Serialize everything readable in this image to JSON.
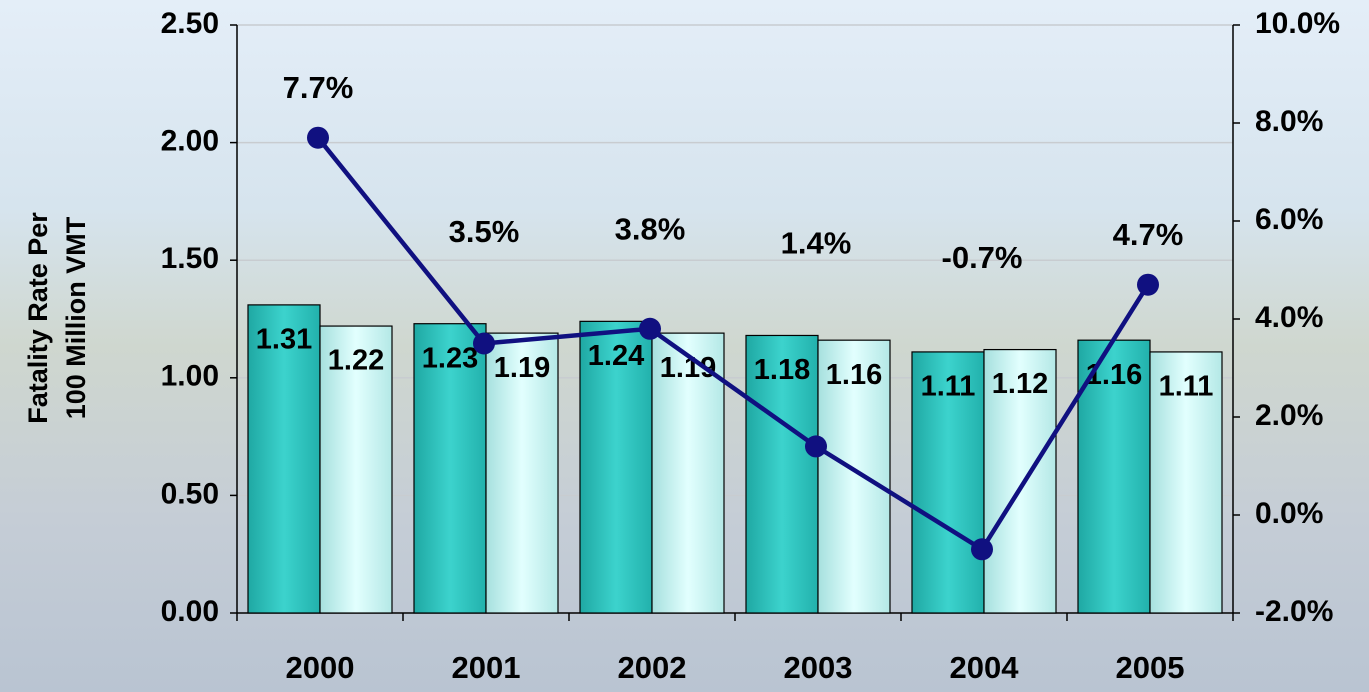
{
  "chart_data": {
    "type": "bar_line",
    "y_label": [
      "Fatality Rate Per",
      "100 Million VMT"
    ],
    "categories": [
      "2000",
      "2001",
      "2002",
      "2003",
      "2004",
      "2005"
    ],
    "series": [
      {
        "type": "bar",
        "color": "#2ec4be",
        "values": [
          1.31,
          1.23,
          1.24,
          1.18,
          1.11,
          1.16
        ]
      },
      {
        "type": "bar",
        "color": "#c9f5f3",
        "values": [
          1.22,
          1.19,
          1.19,
          1.16,
          1.12,
          1.11
        ]
      },
      {
        "type": "line",
        "axis": "y2",
        "color": "#101080",
        "values": [
          7.7,
          3.5,
          3.8,
          1.4,
          -0.7,
          4.7
        ],
        "value_labels": [
          "7.7%",
          "3.5%",
          "3.8%",
          "1.4%",
          "-0.7%",
          "4.7%"
        ]
      }
    ],
    "ylim": [
      0,
      2.5
    ],
    "yticks": [
      {
        "value": 0,
        "label": "0.00"
      },
      {
        "value": 0.5,
        "label": "0.50"
      },
      {
        "value": 1,
        "label": "1.00"
      },
      {
        "value": 1.5,
        "label": "1.50"
      },
      {
        "value": 2,
        "label": "2.00"
      },
      {
        "value": 2.5,
        "label": "2.50"
      }
    ],
    "y2lim": [
      -2,
      10
    ],
    "y2ticks": [
      {
        "value": -2,
        "label": "-2.0%"
      },
      {
        "value": 0,
        "label": "0.0%"
      },
      {
        "value": 2,
        "label": "2.0%"
      },
      {
        "value": 4,
        "label": "4.0%"
      },
      {
        "value": 6,
        "label": "6.0%"
      },
      {
        "value": 8,
        "label": "8.0%"
      },
      {
        "value": 10,
        "label": "10.0%"
      }
    ],
    "grid": true
  }
}
